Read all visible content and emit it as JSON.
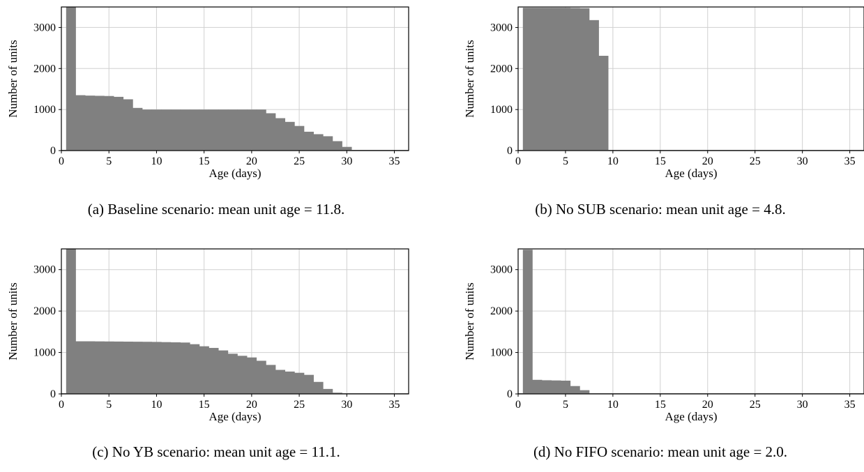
{
  "chart_data": [
    {
      "type": "bar",
      "xlabel": "Age (days)",
      "ylabel": "Number of units",
      "xlim": [
        0,
        36.5
      ],
      "ylim": [
        0,
        3500
      ],
      "xticks": [
        0,
        5,
        10,
        15,
        20,
        25,
        30,
        35
      ],
      "yticks": [
        0,
        1000,
        2000,
        3000
      ],
      "grid": true,
      "caption": "(a) Baseline scenario: mean unit age = 11.8.",
      "bar_color": "#808080",
      "x": [
        1,
        2,
        3,
        4,
        5,
        6,
        7,
        8,
        9,
        10,
        11,
        12,
        13,
        14,
        15,
        16,
        17,
        18,
        19,
        20,
        21,
        22,
        23,
        24,
        25,
        26,
        27,
        28,
        29,
        30,
        31,
        32,
        33,
        34,
        35,
        36
      ],
      "values": [
        3500,
        1350,
        1340,
        1335,
        1330,
        1310,
        1250,
        1040,
        1000,
        1000,
        1000,
        1000,
        1000,
        1000,
        1000,
        1000,
        1000,
        1000,
        1000,
        1000,
        1000,
        910,
        790,
        700,
        600,
        460,
        400,
        350,
        230,
        90,
        10,
        0,
        0,
        0,
        0,
        0
      ]
    },
    {
      "type": "bar",
      "xlabel": "Age (days)",
      "ylabel": "Number of units",
      "xlim": [
        0,
        36.5
      ],
      "ylim": [
        0,
        3500
      ],
      "xticks": [
        0,
        5,
        10,
        15,
        20,
        25,
        30,
        35
      ],
      "yticks": [
        0,
        1000,
        2000,
        3000
      ],
      "grid": true,
      "caption": "(b) No SUB scenario: mean unit age = 4.8.",
      "bar_color": "#808080",
      "x": [
        1,
        2,
        3,
        4,
        5,
        6,
        7,
        8,
        9,
        10,
        11,
        12,
        13,
        14,
        15,
        16,
        17,
        18,
        19,
        20,
        21,
        22,
        23,
        24,
        25,
        26,
        27,
        28,
        29,
        30,
        31,
        32,
        33,
        34,
        35,
        36
      ],
      "values": [
        3480,
        3480,
        3480,
        3480,
        3480,
        3475,
        3470,
        3180,
        2310,
        0,
        0,
        0,
        0,
        0,
        0,
        0,
        0,
        0,
        0,
        0,
        0,
        0,
        0,
        0,
        0,
        0,
        0,
        0,
        0,
        0,
        0,
        0,
        0,
        0,
        0,
        0
      ]
    },
    {
      "type": "bar",
      "xlabel": "Age (days)",
      "ylabel": "Number of units",
      "xlim": [
        0,
        36.5
      ],
      "ylim": [
        0,
        3500
      ],
      "xticks": [
        0,
        5,
        10,
        15,
        20,
        25,
        30,
        35
      ],
      "yticks": [
        0,
        1000,
        2000,
        3000
      ],
      "grid": true,
      "caption": "(c) No YB scenario: mean unit age = 11.1.",
      "bar_color": "#808080",
      "x": [
        1,
        2,
        3,
        4,
        5,
        6,
        7,
        8,
        9,
        10,
        11,
        12,
        13,
        14,
        15,
        16,
        17,
        18,
        19,
        20,
        21,
        22,
        23,
        24,
        25,
        26,
        27,
        28,
        29,
        30,
        31,
        32,
        33,
        34,
        35,
        36
      ],
      "values": [
        3500,
        1270,
        1270,
        1268,
        1266,
        1264,
        1262,
        1260,
        1258,
        1255,
        1250,
        1245,
        1240,
        1200,
        1150,
        1110,
        1050,
        970,
        920,
        880,
        800,
        700,
        580,
        540,
        510,
        460,
        290,
        120,
        30,
        5,
        0,
        0,
        0,
        0,
        0,
        0
      ]
    },
    {
      "type": "bar",
      "xlabel": "Age (days)",
      "ylabel": "Number of units",
      "xlim": [
        0,
        36.5
      ],
      "ylim": [
        0,
        3500
      ],
      "xticks": [
        0,
        5,
        10,
        15,
        20,
        25,
        30,
        35
      ],
      "yticks": [
        0,
        1000,
        2000,
        3000
      ],
      "grid": true,
      "caption": "(d) No FIFO scenario: mean unit age = 2.0.",
      "bar_color": "#808080",
      "x": [
        1,
        2,
        3,
        4,
        5,
        6,
        7,
        8,
        9,
        10,
        11,
        12,
        13,
        14,
        15,
        16,
        17,
        18,
        19,
        20,
        21,
        22,
        23,
        24,
        25,
        26,
        27,
        28,
        29,
        30,
        31,
        32,
        33,
        34,
        35,
        36
      ],
      "values": [
        3480,
        340,
        330,
        325,
        320,
        190,
        90,
        10,
        0,
        0,
        0,
        0,
        0,
        0,
        0,
        0,
        0,
        0,
        0,
        0,
        0,
        0,
        0,
        0,
        0,
        0,
        0,
        0,
        0,
        0,
        0,
        0,
        0,
        0,
        0,
        0
      ]
    }
  ]
}
